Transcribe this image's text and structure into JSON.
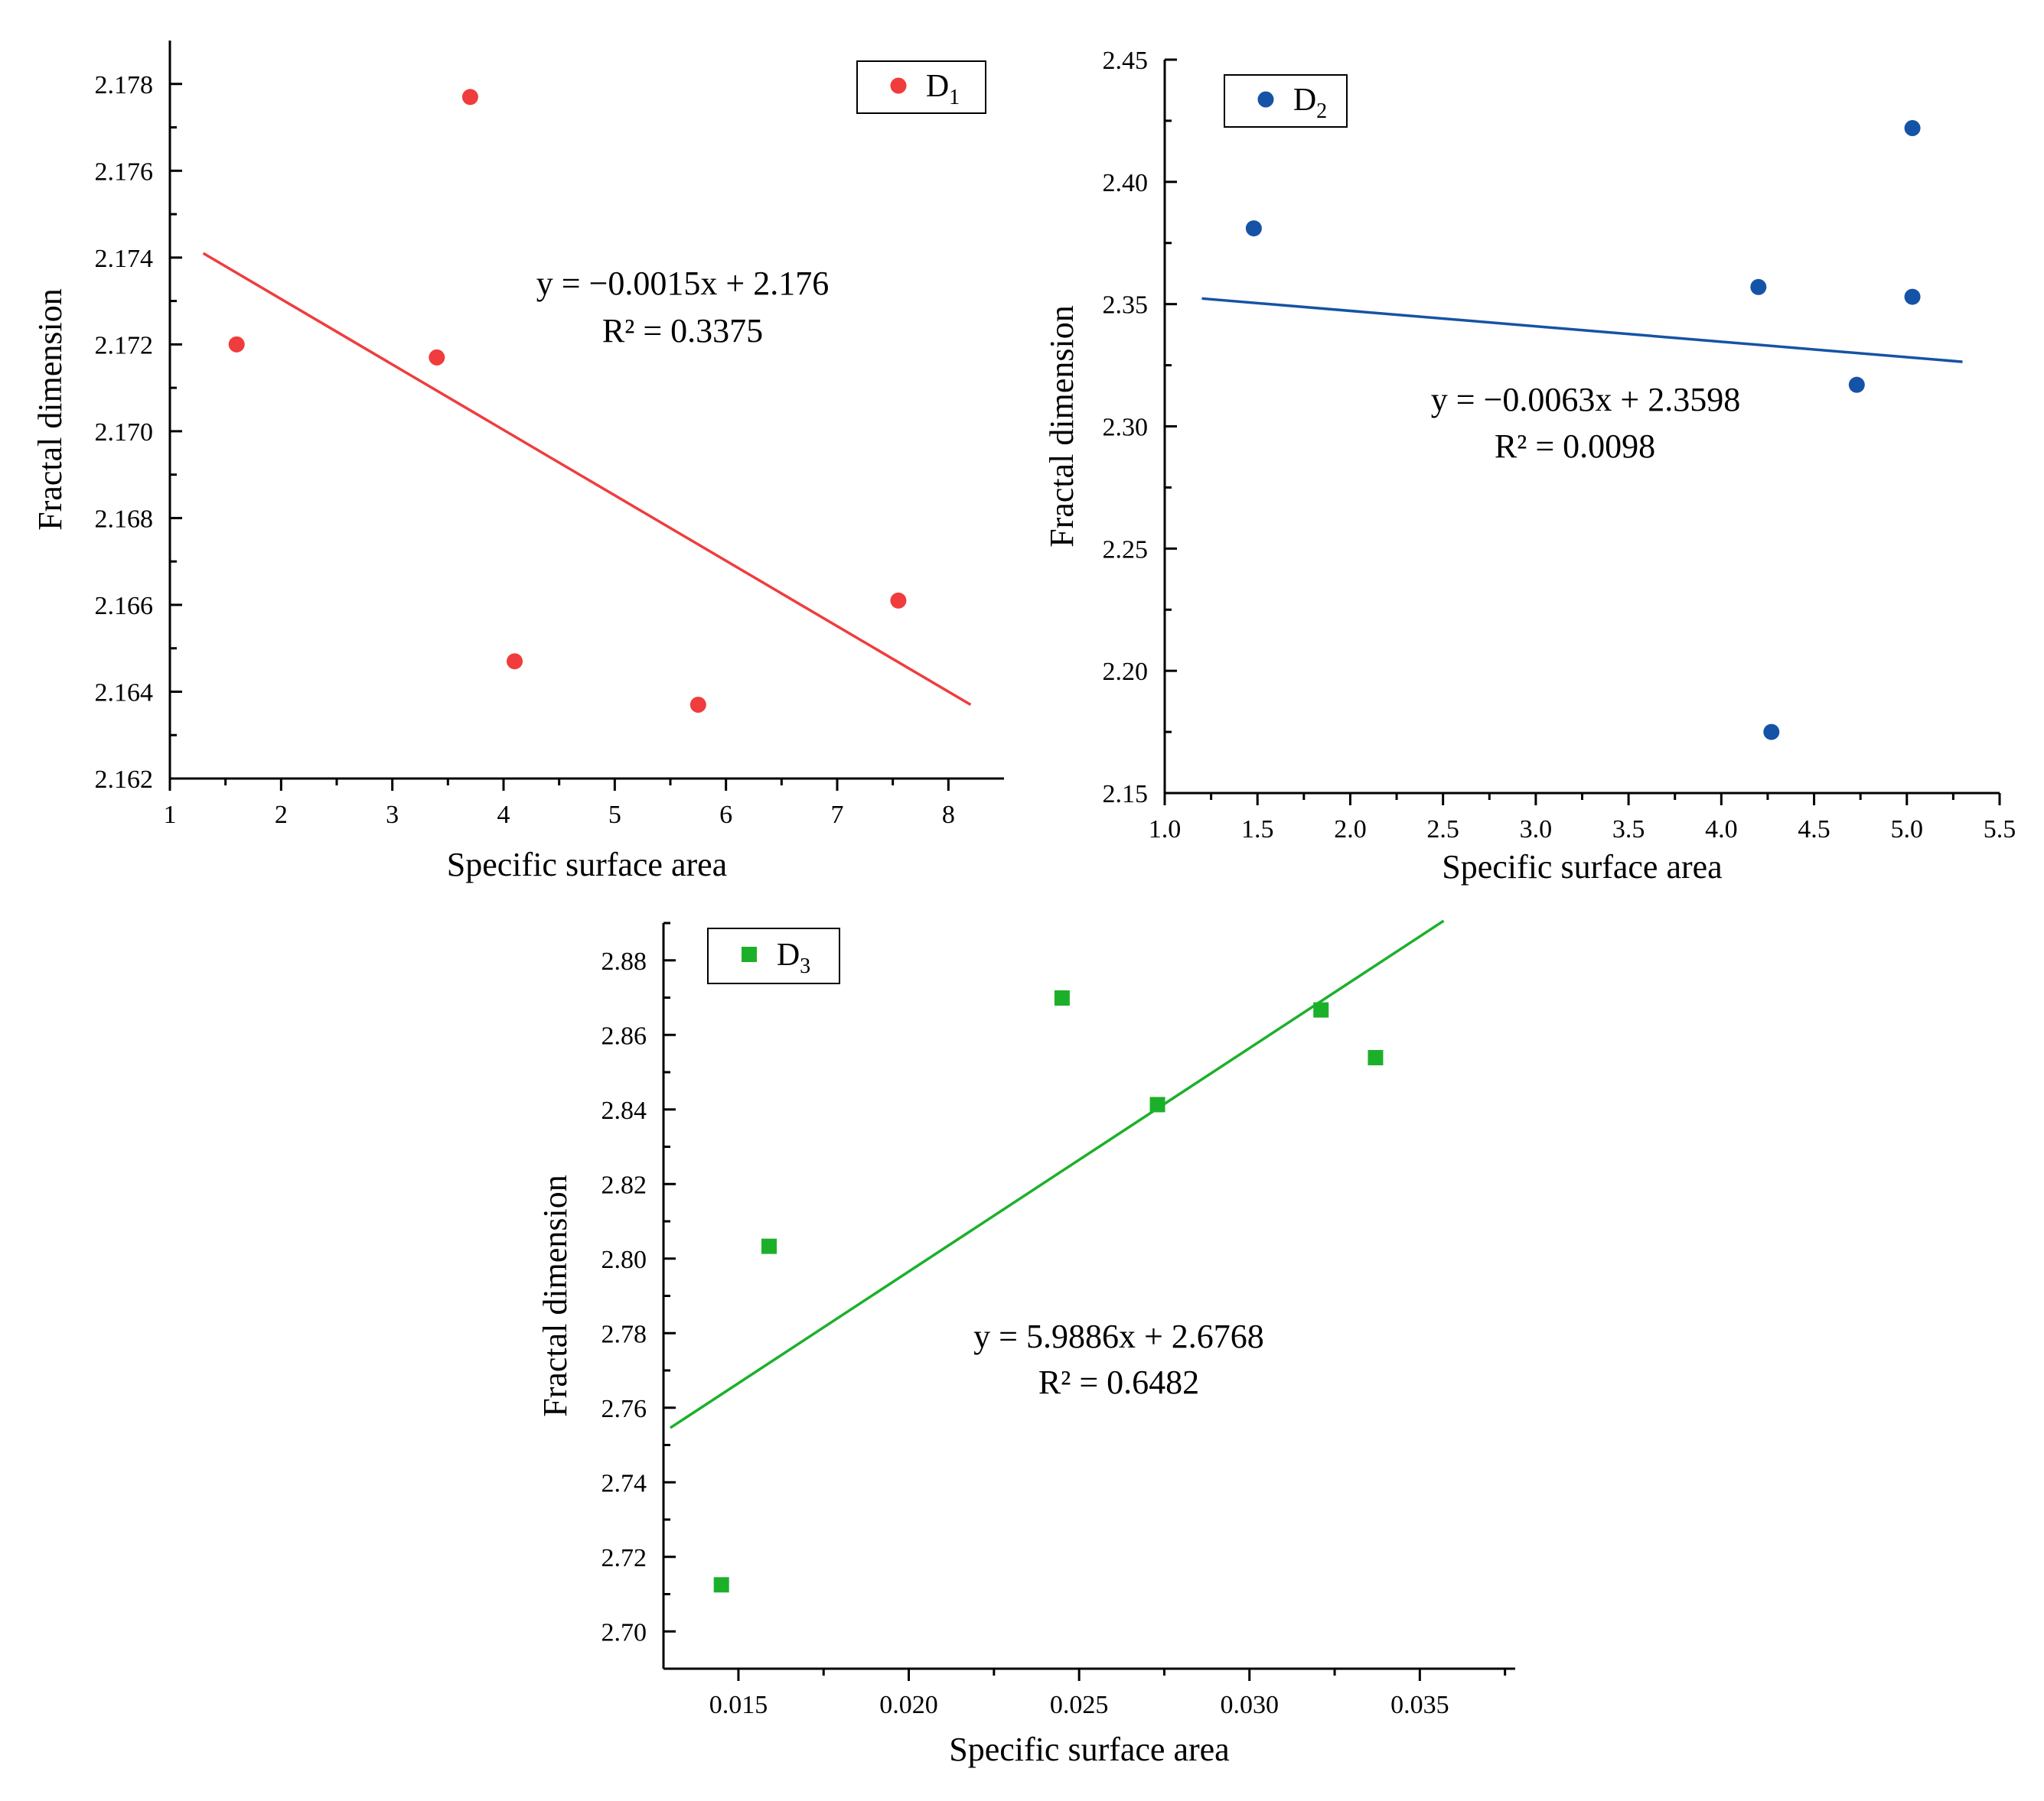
{
  "chart_data": [
    {
      "id": "d1",
      "type": "scatter",
      "series": [
        {
          "name": "D",
          "name_sub": "1",
          "color": "#f03c3c",
          "marker": "circle",
          "x": [
            1.6,
            3.4,
            3.7,
            4.1,
            5.75,
            7.55
          ],
          "y": [
            2.172,
            2.1717,
            2.1777,
            2.1647,
            2.1637,
            2.1661
          ]
        }
      ],
      "fit_line": {
        "x": [
          1.3,
          8.2
        ],
        "y": [
          2.1741,
          2.1637
        ],
        "color": "#f03c3c"
      },
      "equation": "y =  −0.0015x + 2.176",
      "r_squared": "R² = 0.3375",
      "xlabel": "Specific surface area",
      "ylabel": "Fractal dimension",
      "xlim": [
        1,
        8.5
      ],
      "ylim": [
        2.162,
        2.179
      ],
      "xticks": [
        "1",
        "2",
        "3",
        "4",
        "5",
        "6",
        "7",
        "8"
      ],
      "yticks": [
        "2.162",
        "2.164",
        "2.166",
        "2.168",
        "2.170",
        "2.172",
        "2.174",
        "2.176",
        "2.178"
      ],
      "legend_position": "top-right"
    },
    {
      "id": "d2",
      "type": "scatter",
      "series": [
        {
          "name": "D",
          "name_sub": "2",
          "color": "#1553a6",
          "marker": "circle",
          "x": [
            1.48,
            4.2,
            4.27,
            4.73,
            5.03,
            5.03
          ],
          "y": [
            2.381,
            2.357,
            2.175,
            2.317,
            2.422,
            2.353
          ]
        }
      ],
      "fit_line": {
        "x": [
          1.2,
          5.3
        ],
        "y": [
          2.3523,
          2.3264
        ],
        "color": "#1553a6"
      },
      "equation": "y = −0.0063x + 2.3598",
      "r_squared": "R² = 0.0098",
      "xlabel": "Specific surface area",
      "ylabel": "Fractal dimension",
      "xlim": [
        1.0,
        5.5
      ],
      "ylim": [
        2.15,
        2.45
      ],
      "xticks": [
        "1.0",
        "1.5",
        "2.0",
        "2.5",
        "3.0",
        "3.5",
        "4.0",
        "4.5",
        "5.0",
        "5.5"
      ],
      "yticks": [
        "2.15",
        "2.20",
        "2.25",
        "2.30",
        "2.35",
        "2.40",
        "2.45"
      ],
      "legend_position": "top-left"
    },
    {
      "id": "d3",
      "type": "scatter",
      "series": [
        {
          "name": "D",
          "name_sub": "3",
          "color": "#1cb02a",
          "marker": "square",
          "x": [
            0.0145,
            0.0159,
            0.0245,
            0.0273,
            0.0321,
            0.0337
          ],
          "y": [
            2.7125,
            2.8033,
            2.8699,
            2.8413,
            2.8667,
            2.8539
          ]
        }
      ],
      "fit_line": {
        "x": [
          0.013,
          0.0357
        ],
        "y": [
          2.7546,
          2.8906
        ],
        "color": "#1cb02a"
      },
      "equation": "y = 5.9886x + 2.6768",
      "r_squared": "R² = 0.6482",
      "xlabel": "Specific surface area",
      "ylabel": "Fractal dimension",
      "xlim": [
        0.0128,
        0.0378
      ],
      "ylim": [
        2.69,
        2.89
      ],
      "xticks": [
        "0.015",
        "0.020",
        "0.025",
        "0.030",
        "0.035"
      ],
      "yticks": [
        "2.70",
        "2.72",
        "2.74",
        "2.76",
        "2.78",
        "2.80",
        "2.82",
        "2.84",
        "2.86",
        "2.88"
      ],
      "legend_position": "top-left"
    }
  ]
}
